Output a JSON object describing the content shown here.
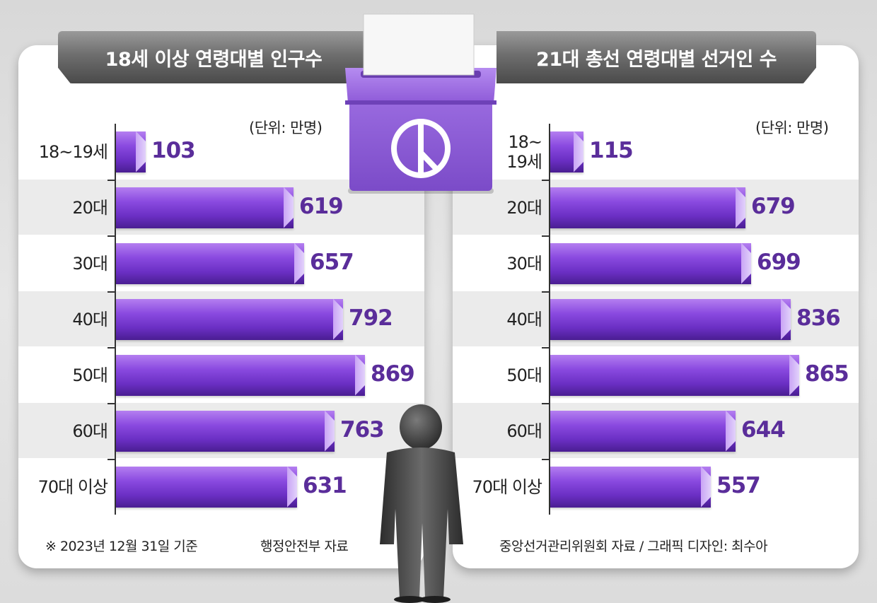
{
  "colors": {
    "bar": "#7b3fd6",
    "value": "#5a2d9a",
    "tab": "#6e6e6e"
  },
  "left": {
    "title": "18세 이상 연령대별 인구수",
    "unit": "(단위: 만명)",
    "footnote": "※ 2023년 12월 31일 기준",
    "source": "행정안전부 자료"
  },
  "right": {
    "title": "21대 총선 연령대별 선거인 수",
    "unit": "(단위: 만명)",
    "source": "중앙선거관리위원회 자료 / 그래픽 디자인: 최수아"
  },
  "icons": [
    "ballot-box-icon",
    "person-icon"
  ],
  "chart_data": [
    {
      "type": "bar",
      "orientation": "horizontal",
      "title": "18세 이상 연령대별 인구수",
      "unit": "(단위: 만명)",
      "categories": [
        "18~19세",
        "20대",
        "30대",
        "40대",
        "50대",
        "60대",
        "70대 이상"
      ],
      "values": [
        103,
        619,
        657,
        792,
        869,
        763,
        631
      ],
      "value_labels": [
        "103",
        "619",
        "657",
        "792",
        "869",
        "763",
        "631"
      ],
      "xlim": [
        0,
        869
      ],
      "grid": false
    },
    {
      "type": "bar",
      "orientation": "horizontal",
      "title": "21대 총선 연령대별 선거인 수",
      "unit": "(단위: 만명)",
      "categories": [
        "18~19세",
        "20대",
        "30대",
        "40대",
        "50대",
        "60대",
        "70대 이상"
      ],
      "values": [
        115,
        679,
        699,
        836,
        865,
        644,
        557
      ],
      "value_labels": [
        "115",
        "679",
        "699",
        "836",
        "865",
        "644",
        "557"
      ],
      "xlim": [
        0,
        865
      ],
      "grid": false
    }
  ]
}
